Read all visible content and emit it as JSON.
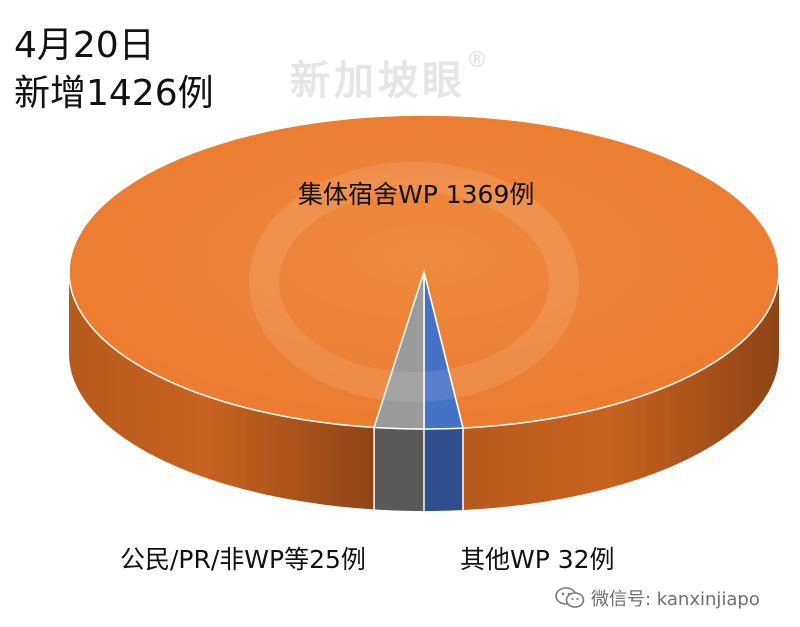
{
  "chart_data": {
    "type": "pie",
    "title": "4月20日",
    "subtitle": "新增1426例",
    "slices": [
      {
        "label": "集体宿舍WP 1369例",
        "value": 1369,
        "color": "#ED7D31"
      },
      {
        "label": "公民/PR/非WP等25例",
        "value": 25,
        "color": "#4472C4"
      },
      {
        "label": "其他WP 32例",
        "value": 32,
        "color": "#8E8E8E"
      }
    ],
    "total": 1426
  },
  "watermark": {
    "text": "新加坡眼",
    "mark": "®"
  },
  "footer": {
    "wechat_text": "微信号: kanxinjiapo",
    "icon": "wechat-icon"
  }
}
